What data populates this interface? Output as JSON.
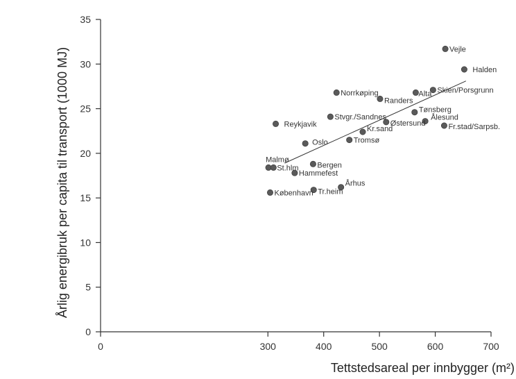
{
  "chart_data": {
    "type": "scatter",
    "title": "",
    "xlabel": "Tettstedsareal per innbygger (m²)",
    "ylabel": "Årlig energibruk per capita til transport (1000 MJ)",
    "xlim": [
      0,
      700
    ],
    "ylim": [
      0,
      35
    ],
    "xticks": [
      "0",
      "300",
      "400",
      "500",
      "600",
      "700"
    ],
    "yticks": [
      "0",
      "5",
      "10",
      "15",
      "20",
      "25",
      "30",
      "35"
    ],
    "grid": false,
    "points": [
      {
        "label": "Vejle",
        "x": 618,
        "y": 31.7
      },
      {
        "label": "Halden",
        "x": 652,
        "y": 29.4
      },
      {
        "label": "Norrkøping",
        "x": 423,
        "y": 26.8
      },
      {
        "label": "Randers",
        "x": 501,
        "y": 26.1
      },
      {
        "label": "Alta",
        "x": 565,
        "y": 26.8
      },
      {
        "label": "Skien/Porsgrunn",
        "x": 596,
        "y": 27.1
      },
      {
        "label": "Tønsberg",
        "x": 563,
        "y": 24.6
      },
      {
        "label": "Stvgr./Sandnes",
        "x": 412,
        "y": 24.1
      },
      {
        "label": "Ålesund",
        "x": 582,
        "y": 23.6
      },
      {
        "label": "Østersund",
        "x": 512,
        "y": 23.5
      },
      {
        "label": "Fr.stad/Sarpsb.",
        "x": 616,
        "y": 23.1
      },
      {
        "label": "Reykjavik",
        "x": 314,
        "y": 23.3
      },
      {
        "label": "Kr.sand",
        "x": 470,
        "y": 22.4
      },
      {
        "label": "Tromsø",
        "x": 446,
        "y": 21.5
      },
      {
        "label": "Oslo",
        "x": 367,
        "y": 21.1
      },
      {
        "label": "Bergen",
        "x": 381,
        "y": 18.8
      },
      {
        "label": "Malmø",
        "x": 301,
        "y": 18.4
      },
      {
        "label": "St.hlm",
        "x": 310,
        "y": 18.4
      },
      {
        "label": "Hammefest",
        "x": 348,
        "y": 17.8
      },
      {
        "label": "Århus",
        "x": 431,
        "y": 16.2
      },
      {
        "label": "Tr.heim",
        "x": 382,
        "y": 15.9
      },
      {
        "label": "København",
        "x": 304,
        "y": 15.6
      }
    ],
    "trendline": {
      "x": [
        330,
        655
      ],
      "y": [
        18.9,
        28.1
      ]
    }
  }
}
